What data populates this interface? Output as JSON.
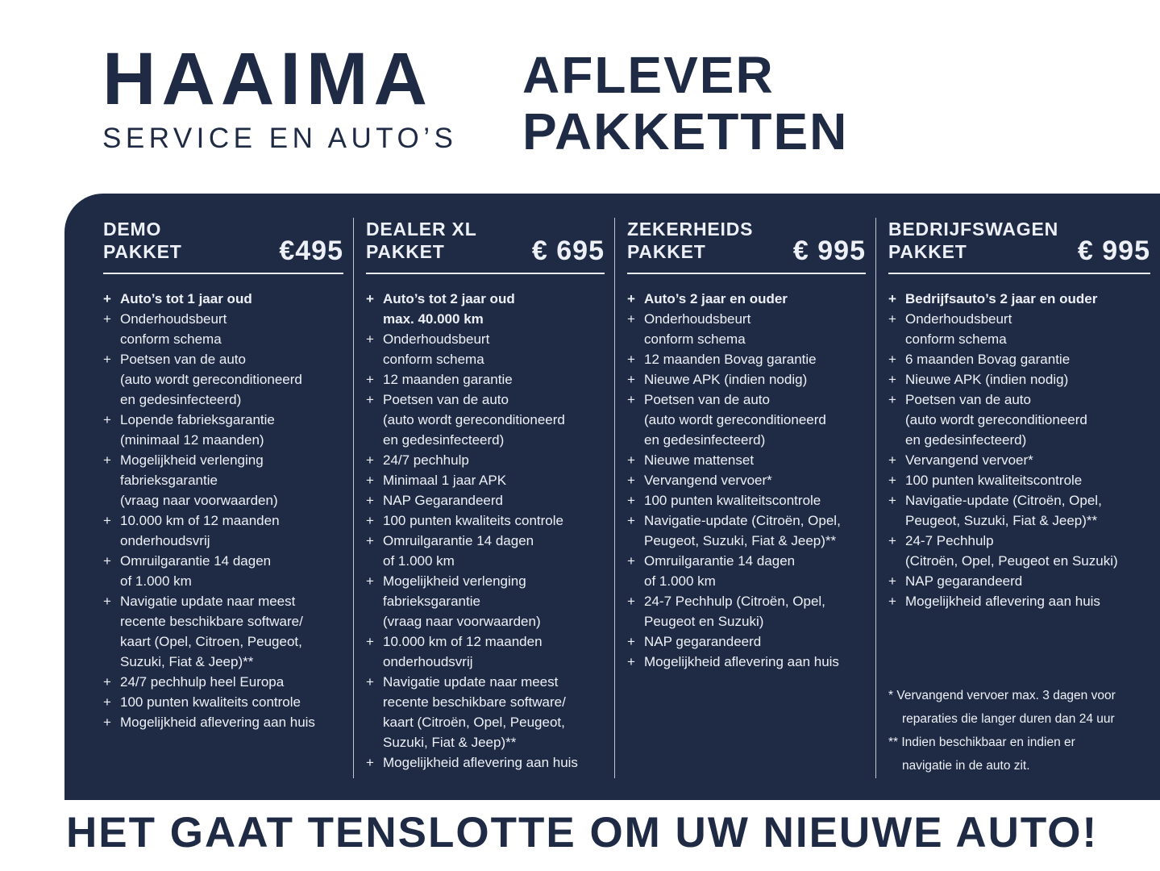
{
  "colors": {
    "navy": "#1f2a44",
    "panel_text": "#edf1f7",
    "rule": "#e8ecf2"
  },
  "brand": {
    "logo_title": "HAAIMA",
    "logo_subtitle": "SERVICE EN AUTO’S"
  },
  "header": {
    "title_line1": "AFLEVER",
    "title_line2": "PAKKETTEN"
  },
  "bullet": "+",
  "packages": [
    {
      "name_line1": "DEMO",
      "name_line2": "PAKKET",
      "price": "€495",
      "items": [
        {
          "bold": true,
          "lines": [
            "Auto’s tot 1 jaar oud"
          ]
        },
        {
          "lines": [
            "Onderhoudsbeurt",
            "conform schema"
          ]
        },
        {
          "lines": [
            "Poetsen van de auto",
            "(auto wordt gereconditioneerd",
            "en gedesinfecteerd)"
          ]
        },
        {
          "lines": [
            "Lopende fabrieksgarantie",
            "(minimaal 12 maanden)"
          ]
        },
        {
          "lines": [
            "Mogelijkheid verlenging",
            "fabrieksgarantie",
            "(vraag naar voorwaarden)"
          ]
        },
        {
          "lines": [
            "10.000 km of 12 maanden",
            "onderhoudsvrij"
          ]
        },
        {
          "lines": [
            "Omruilgarantie 14 dagen",
            "of 1.000 km"
          ]
        },
        {
          "lines": [
            "Navigatie update naar meest",
            "recente beschikbare software/",
            "kaart (Opel, Citroen,  Peugeot,",
            "Suzuki, Fiat & Jeep)**"
          ]
        },
        {
          "lines": [
            "24/7 pechhulp heel Europa"
          ]
        },
        {
          "lines": [
            "100 punten kwaliteits controle"
          ]
        },
        {
          "lines": [
            "Mogelijkheid aflevering aan huis"
          ]
        }
      ]
    },
    {
      "name_line1": "DEALER XL",
      "name_line2": "PAKKET",
      "price": "€ 695",
      "items": [
        {
          "bold": true,
          "lines": [
            "Auto’s tot 2 jaar oud",
            "max. 40.000 km"
          ]
        },
        {
          "lines": [
            "Onderhoudsbeurt",
            "conform schema"
          ]
        },
        {
          "lines": [
            "12 maanden garantie"
          ]
        },
        {
          "lines": [
            "Poetsen van de auto",
            "(auto wordt gereconditioneerd",
            "en gedesinfecteerd)"
          ]
        },
        {
          "lines": [
            "24/7 pechhulp"
          ]
        },
        {
          "lines": [
            "Minimaal 1 jaar APK"
          ]
        },
        {
          "lines": [
            "NAP Gegarandeerd"
          ]
        },
        {
          "lines": [
            "100 punten kwaliteits controle"
          ]
        },
        {
          "lines": [
            "Omruilgarantie 14 dagen",
            "of 1.000 km"
          ]
        },
        {
          "lines": [
            "Mogelijkheid verlenging",
            "fabrieksgarantie",
            "(vraag naar voorwaarden)"
          ]
        },
        {
          "lines": [
            "10.000 km of 12 maanden",
            "onderhoudsvrij"
          ]
        },
        {
          "lines": [
            "Navigatie update naar meest",
            "recente beschikbare software/",
            "kaart (Citroën, Opel, Peugeot,",
            "Suzuki, Fiat & Jeep)**"
          ]
        },
        {
          "lines": [
            "Mogelijkheid aflevering aan huis"
          ]
        }
      ]
    },
    {
      "name_line1": "ZEKERHEIDS",
      "name_line2": "PAKKET",
      "price": "€ 995",
      "items": [
        {
          "bold": true,
          "lines": [
            "Auto’s 2 jaar en ouder"
          ]
        },
        {
          "lines": [
            "Onderhoudsbeurt",
            "conform schema"
          ]
        },
        {
          "lines": [
            "12 maanden Bovag garantie"
          ]
        },
        {
          "lines": [
            "Nieuwe APK (indien nodig)"
          ]
        },
        {
          "lines": [
            "Poetsen van de auto",
            "(auto wordt gereconditioneerd",
            "en gedesinfecteerd)"
          ]
        },
        {
          "lines": [
            "Nieuwe mattenset"
          ]
        },
        {
          "lines": [
            "Vervangend vervoer*"
          ]
        },
        {
          "lines": [
            "100 punten kwaliteitscontrole"
          ]
        },
        {
          "lines": [
            "Navigatie-update (Citroën, Opel,",
            "Peugeot, Suzuki, Fiat & Jeep)**"
          ]
        },
        {
          "lines": [
            "Omruilgarantie 14 dagen",
            "of 1.000 km"
          ]
        },
        {
          "lines": [
            "24-7 Pechhulp (Citroën, Opel,",
            "Peugeot en Suzuki)"
          ]
        },
        {
          "lines": [
            "NAP gegarandeerd"
          ]
        },
        {
          "lines": [
            "Mogelijkheid aflevering aan huis"
          ]
        }
      ]
    },
    {
      "name_line1": "BEDRIJFSWAGEN",
      "name_line2": "PAKKET",
      "price": "€ 995",
      "items": [
        {
          "bold": true,
          "lines": [
            "Bedrijfsauto’s 2 jaar en ouder"
          ]
        },
        {
          "lines": [
            "Onderhoudsbeurt",
            "conform schema"
          ]
        },
        {
          "lines": [
            "6 maanden Bovag garantie"
          ]
        },
        {
          "lines": [
            "Nieuwe APK (indien nodig)"
          ]
        },
        {
          "lines": [
            "Poetsen van de auto",
            "(auto wordt gereconditioneerd",
            "en gedesinfecteerd)"
          ]
        },
        {
          "lines": [
            "Vervangend vervoer*"
          ]
        },
        {
          "lines": [
            "100 punten kwaliteitscontrole"
          ]
        },
        {
          "lines": [
            "Navigatie-update (Citroën, Opel,",
            "Peugeot, Suzuki, Fiat & Jeep)**"
          ]
        },
        {
          "lines": [
            "24-7 Pechhulp",
            "(Citroën, Opel, Peugeot en Suzuki)"
          ]
        },
        {
          "lines": [
            "NAP gegarandeerd"
          ]
        },
        {
          "lines": [
            "Mogelijkheid aflevering aan huis"
          ]
        }
      ]
    }
  ],
  "footnotes": [
    {
      "lines": [
        "* Vervangend vervoer max. 3 dagen voor",
        "reparaties die langer duren dan 24 uur"
      ]
    },
    {
      "lines": [
        "** Indien beschikbaar en indien er",
        "navigatie in de auto zit."
      ]
    }
  ],
  "footer": {
    "tagline": "HET GAAT TENSLOTTE OM UW NIEUWE AUTO!"
  }
}
